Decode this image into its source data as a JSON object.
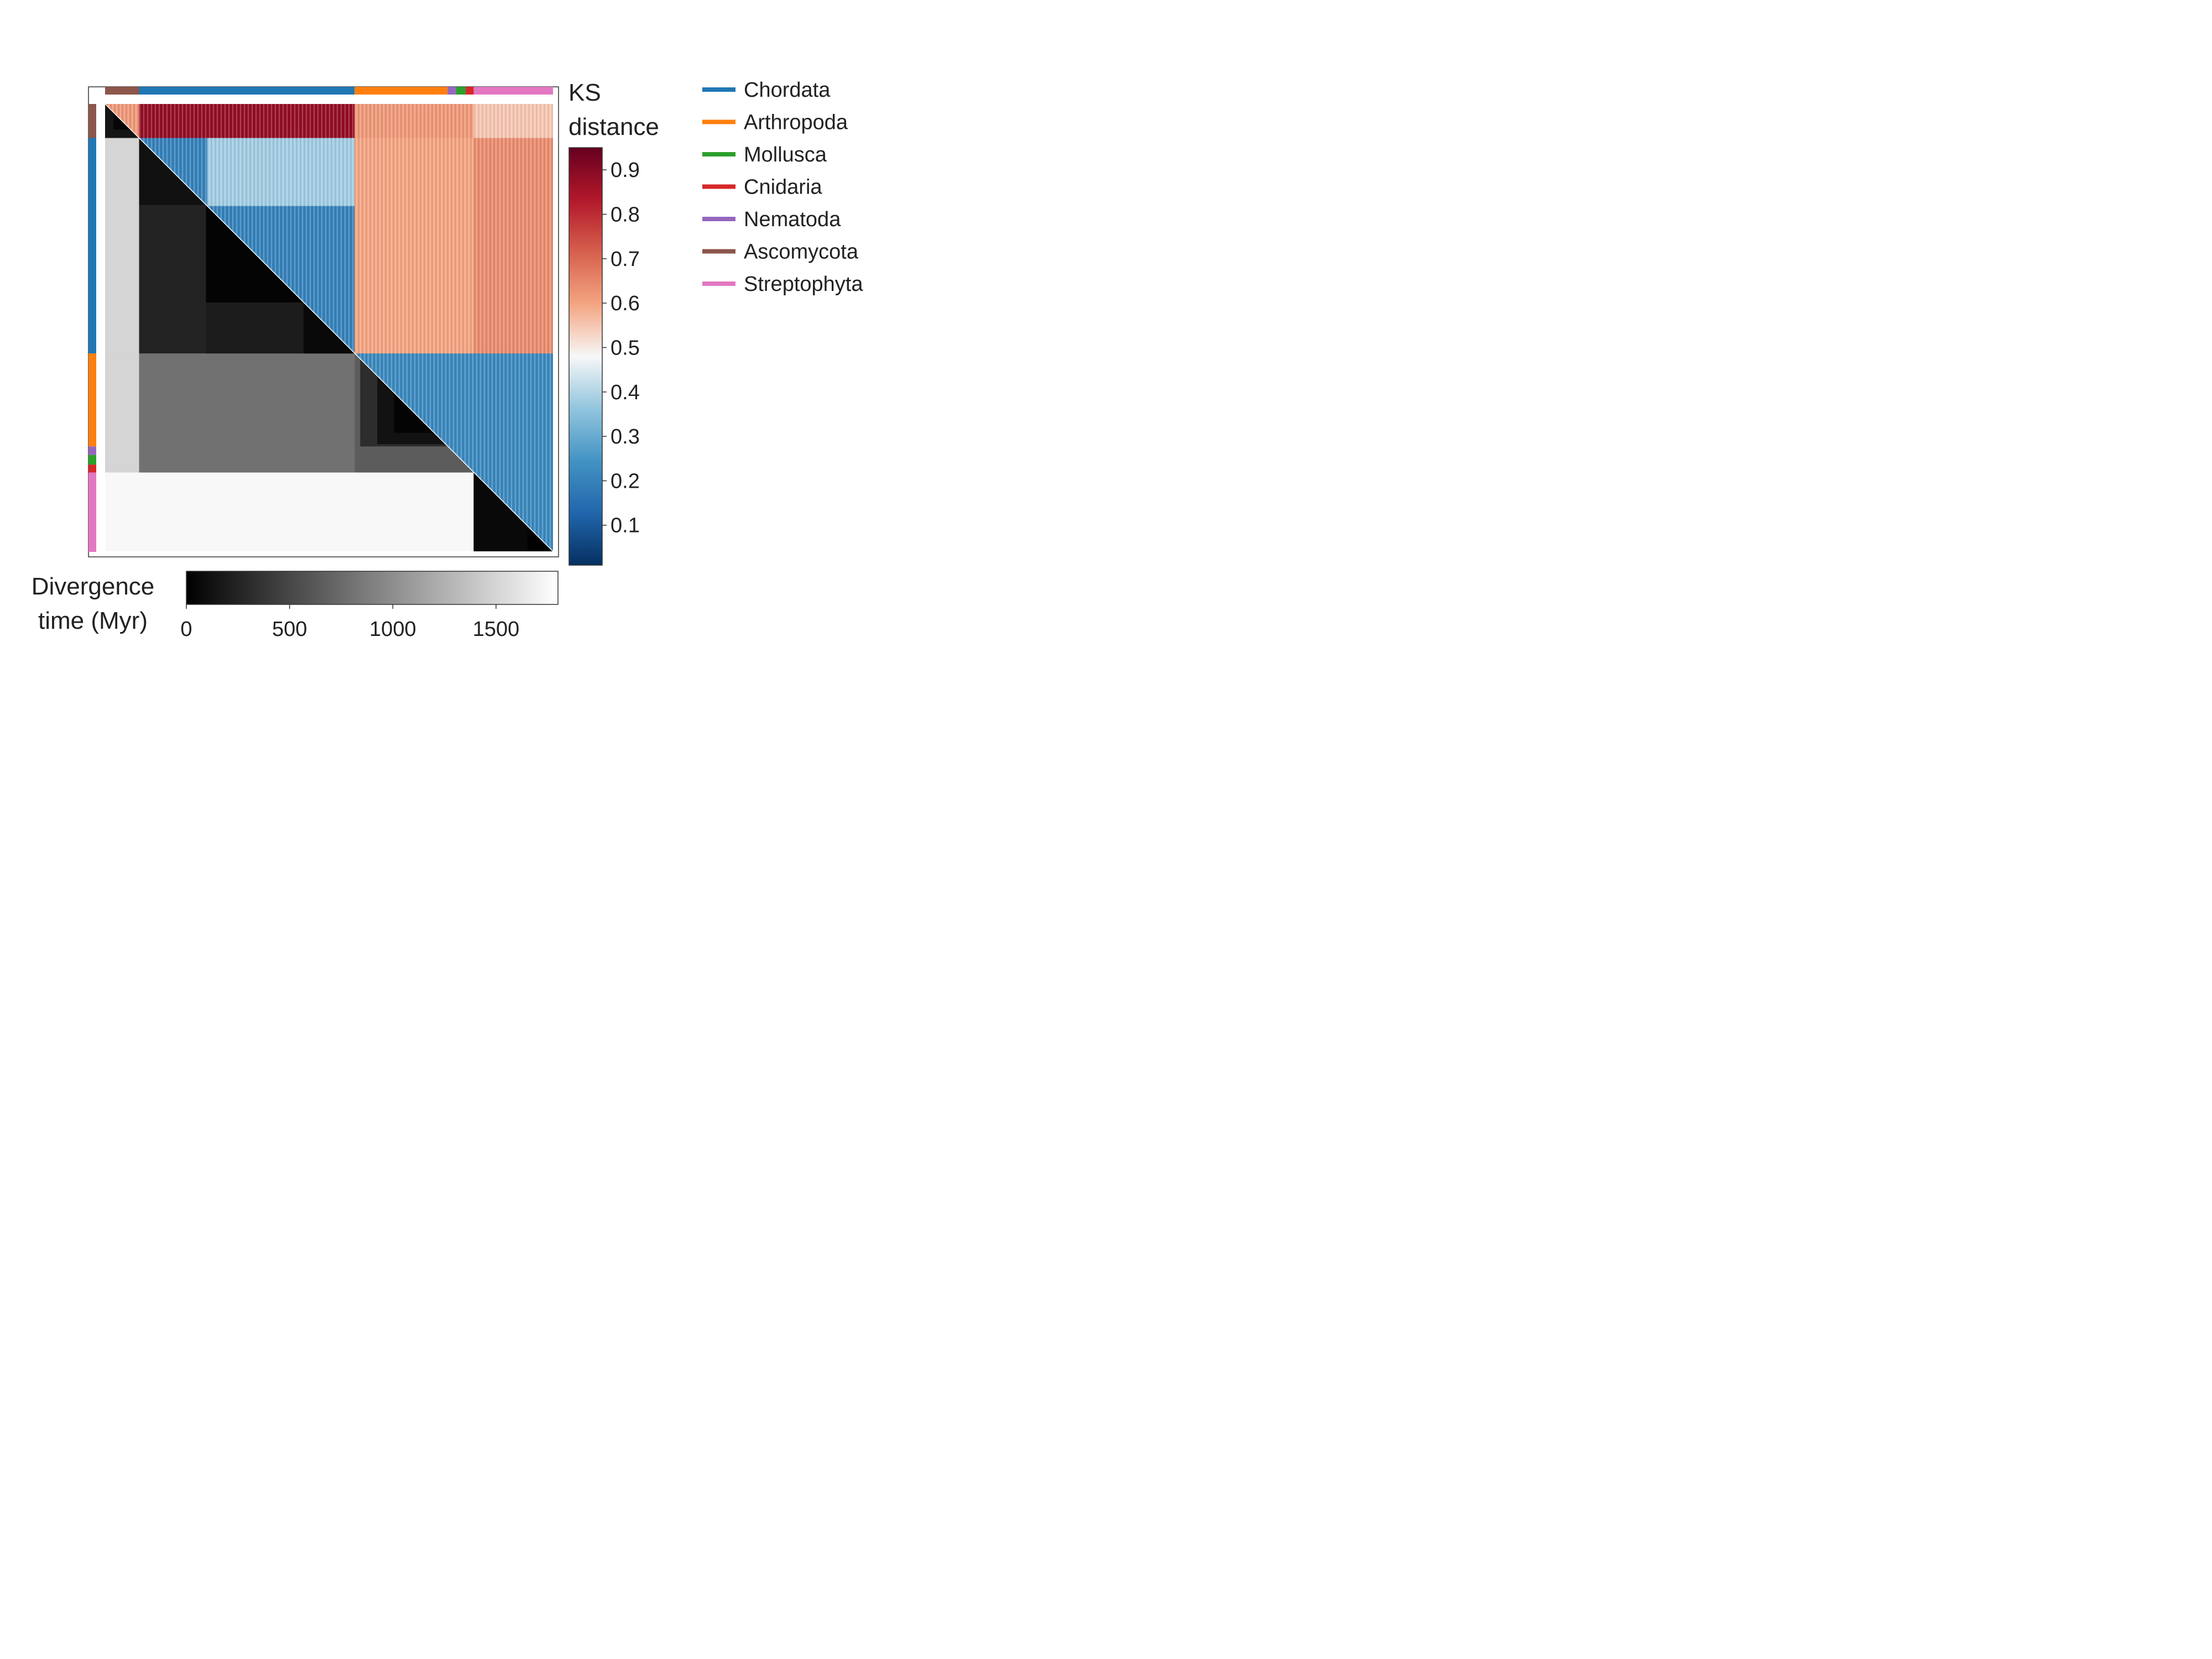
{
  "chart_data": {
    "type": "heatmap",
    "title": "",
    "upper_triangle": "KS distance between taxa (clustered order)",
    "lower_triangle": "Divergence time between taxa",
    "clades": [
      {
        "name": "Ascomycota",
        "color": "#8c564b",
        "start": 0,
        "end": 60
      },
      {
        "name": "Chordata",
        "color": "#1f77b4",
        "start": 60,
        "end": 440
      },
      {
        "name": "Arthropoda",
        "color": "#ff7f0e",
        "start": 440,
        "end": 604
      },
      {
        "name": "Nematoda",
        "color": "#9467bd",
        "start": 604,
        "end": 619
      },
      {
        "name": "Mollusca",
        "color": "#2ca02c",
        "start": 619,
        "end": 636
      },
      {
        "name": "Cnidaria",
        "color": "#d62728",
        "start": 636,
        "end": 650
      },
      {
        "name": "Streptophyta",
        "color": "#e377c2",
        "start": 650,
        "end": 790
      }
    ],
    "n_taxa": 790,
    "ks_colorbar": {
      "label_line1": "KS",
      "label_line2": "distance",
      "colormap": "RdBu_r",
      "range": [
        0.01,
        0.95
      ],
      "ticks": [
        "0.1",
        "0.2",
        "0.3",
        "0.4",
        "0.5",
        "0.6",
        "0.7",
        "0.8",
        "0.9"
      ],
      "tick_values": [
        0.1,
        0.2,
        0.3,
        0.4,
        0.5,
        0.6,
        0.7,
        0.8,
        0.9
      ]
    },
    "time_colorbar": {
      "label_line1": "Divergence",
      "label_line2": "time (Myr)",
      "colormap": "gray",
      "range": [
        0,
        1800
      ],
      "ticks": [
        "0",
        "500",
        "1000",
        "1500"
      ],
      "tick_values": [
        0,
        500,
        1000,
        1500
      ]
    },
    "legend": {
      "placement": "right",
      "items": [
        {
          "label": "Chordata",
          "color": "#1f77b4"
        },
        {
          "label": "Arthropoda",
          "color": "#ff7f0e"
        },
        {
          "label": "Mollusca",
          "color": "#2ca02c"
        },
        {
          "label": "Cnidaria",
          "color": "#d62728"
        },
        {
          "label": "Nematoda",
          "color": "#9467bd"
        },
        {
          "label": "Ascomycota",
          "color": "#8c564b"
        },
        {
          "label": "Streptophyta",
          "color": "#e377c2"
        }
      ]
    },
    "divergence_blocks_myr": [
      {
        "clades": [
          "Ascomycota",
          "Chordata"
        ],
        "value": 1500
      },
      {
        "clades": [
          "Ascomycota",
          "Arthropoda"
        ],
        "value": 1500
      },
      {
        "clades": [
          "Ascomycota",
          "Streptophyta"
        ],
        "value": 1750
      },
      {
        "clades": [
          "Chordata",
          "Arthropoda"
        ],
        "value": 800
      },
      {
        "clades": [
          "Chordata",
          "Streptophyta"
        ],
        "value": 1750
      },
      {
        "clades": [
          "Arthropoda",
          "Streptophyta"
        ],
        "value": 1750
      },
      {
        "clades": [
          "Chordata",
          "Chordata"
        ],
        "value": 250
      },
      {
        "clades": [
          "Arthropoda",
          "Arthropoda"
        ],
        "value": 300
      },
      {
        "clades": [
          "Streptophyta",
          "Streptophyta"
        ],
        "value": 100
      }
    ],
    "ks_blocks": [
      {
        "clades": [
          "Ascomycota",
          "Chordata"
        ],
        "value": 0.88
      },
      {
        "clades": [
          "Ascomycota",
          "Arthropoda"
        ],
        "value": 0.62
      },
      {
        "clades": [
          "Ascomycota",
          "Streptophyta"
        ],
        "value": 0.55
      },
      {
        "clades": [
          "Chordata",
          "Chordata"
        ],
        "value": 0.2
      },
      {
        "clades": [
          "Chordata",
          "Arthropoda"
        ],
        "value": 0.65
      },
      {
        "clades": [
          "Chordata",
          "Streptophyta"
        ],
        "value": 0.66
      },
      {
        "clades": [
          "Arthropoda",
          "Arthropoda"
        ],
        "value": 0.2
      },
      {
        "clades": [
          "Arthropoda",
          "Streptophyta"
        ],
        "value": 0.25
      },
      {
        "clades": [
          "Streptophyta",
          "Streptophyta"
        ],
        "value": 0.15
      }
    ]
  }
}
